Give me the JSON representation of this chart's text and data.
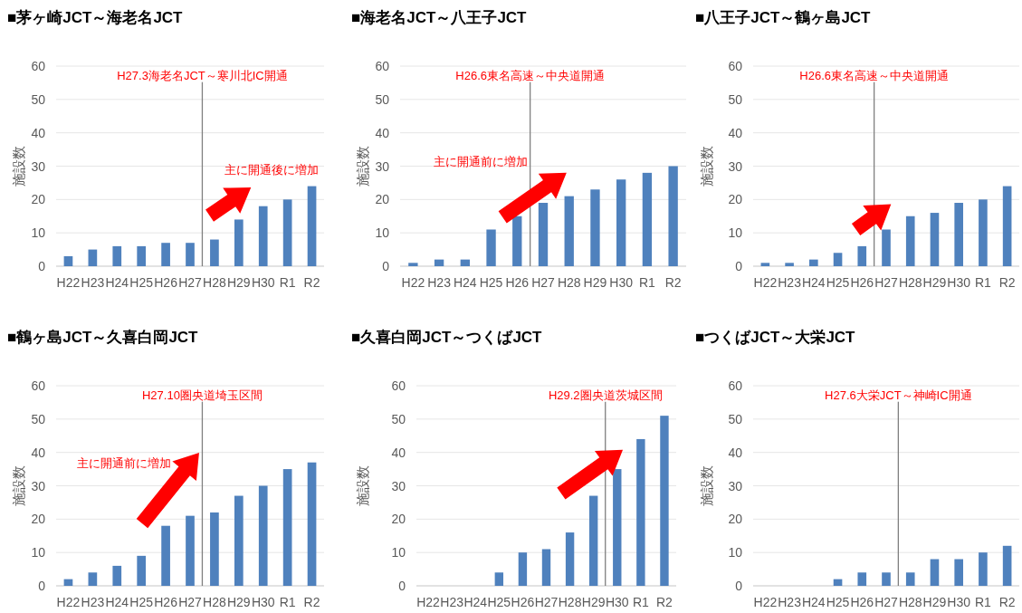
{
  "chart_data": [
    {
      "type": "bar",
      "title": "■茅ヶ崎JCT～海老名JCT",
      "ylabel": "施設数",
      "categories": [
        "H22",
        "H23",
        "H24",
        "H25",
        "H26",
        "H27",
        "H28",
        "H29",
        "H30",
        "R1",
        "R2"
      ],
      "values": [
        3,
        5,
        6,
        6,
        7,
        7,
        8,
        14,
        18,
        20,
        24
      ],
      "color": "#4f81bd",
      "ylim": [
        0,
        60
      ],
      "yticks": [
        0,
        10,
        20,
        30,
        40,
        50,
        60
      ],
      "grid": "y",
      "ref_lines": [
        {
          "axis": "x",
          "value": "H27",
          "label": "H27.3海老名JCT～寒川北IC開通",
          "color": "#7f7f7f"
        }
      ],
      "annotations": [
        "主に開通後に増加"
      ]
    },
    {
      "type": "bar",
      "title": "■海老名JCT～八王子JCT",
      "ylabel": "施設数",
      "categories": [
        "H22",
        "H23",
        "H24",
        "H25",
        "H26",
        "H27",
        "H28",
        "H29",
        "H30",
        "R1",
        "R2"
      ],
      "values": [
        1,
        2,
        2,
        11,
        15,
        19,
        21,
        23,
        26,
        28,
        30
      ],
      "color": "#4f81bd",
      "ylim": [
        0,
        60
      ],
      "yticks": [
        0,
        10,
        20,
        30,
        40,
        50,
        60
      ],
      "grid": "y",
      "ref_lines": [
        {
          "axis": "x",
          "value": "H26",
          "label": "H26.6東名高速～中央道開通",
          "color": "#7f7f7f"
        }
      ],
      "annotations": [
        "主に開通前に増加"
      ]
    },
    {
      "type": "bar",
      "title": "■八王子JCT～鶴ヶ島JCT",
      "ylabel": "施設数",
      "categories": [
        "H22",
        "H23",
        "H24",
        "H25",
        "H26",
        "H27",
        "H28",
        "H29",
        "H30",
        "R1",
        "R2"
      ],
      "values": [
        1,
        1,
        2,
        4,
        6,
        11,
        15,
        16,
        19,
        20,
        24
      ],
      "color": "#4f81bd",
      "ylim": [
        0,
        60
      ],
      "yticks": [
        0,
        10,
        20,
        30,
        40,
        50,
        60
      ],
      "grid": "y",
      "ref_lines": [
        {
          "axis": "x",
          "value": "H26",
          "label": "H26.6東名高速～中央道開通",
          "color": "#7f7f7f"
        }
      ]
    },
    {
      "type": "bar",
      "title": "■鶴ヶ島JCT～久喜白岡JCT",
      "ylabel": "施設数",
      "categories": [
        "H22",
        "H23",
        "H24",
        "H25",
        "H26",
        "H27",
        "H28",
        "H29",
        "H30",
        "R1",
        "R2"
      ],
      "values": [
        2,
        4,
        6,
        9,
        18,
        21,
        22,
        27,
        30,
        35,
        37
      ],
      "color": "#4f81bd",
      "ylim": [
        0,
        60
      ],
      "yticks": [
        0,
        10,
        20,
        30,
        40,
        50,
        60
      ],
      "grid": "y",
      "ref_lines": [
        {
          "axis": "x",
          "value": "H27",
          "label": "H27.10圏央道埼玉区間",
          "color": "#7f7f7f"
        }
      ],
      "annotations": [
        "主に開通前に増加"
      ]
    },
    {
      "type": "bar",
      "title": "■久喜白岡JCT～つくばJCT",
      "ylabel": "施設数",
      "categories": [
        "H22",
        "H23",
        "H24",
        "H25",
        "H26",
        "H27",
        "H28",
        "H29",
        "H30",
        "R1",
        "R2"
      ],
      "values": [
        0,
        0,
        0,
        4,
        10,
        11,
        16,
        27,
        35,
        44,
        51
      ],
      "color": "#4f81bd",
      "ylim": [
        0,
        60
      ],
      "yticks": [
        0,
        10,
        20,
        30,
        40,
        50,
        60
      ],
      "grid": "y",
      "ref_lines": [
        {
          "axis": "x",
          "value": "H29",
          "label": "H29.2圏央道茨城区間",
          "color": "#7f7f7f"
        }
      ]
    },
    {
      "type": "bar",
      "title": "■つくばJCT～大栄JCT",
      "ylabel": "施設数",
      "categories": [
        "H22",
        "H23",
        "H24",
        "H25",
        "H26",
        "H27",
        "H28",
        "H29",
        "H30",
        "R1",
        "R2"
      ],
      "values": [
        0,
        0,
        0,
        2,
        4,
        4,
        4,
        8,
        8,
        10,
        12
      ],
      "color": "#4f81bd",
      "ylim": [
        0,
        60
      ],
      "yticks": [
        0,
        10,
        20,
        30,
        40,
        50,
        60
      ],
      "grid": "y",
      "ref_lines": [
        {
          "axis": "x",
          "value": "H27",
          "label": "H27.6大栄JCT～神崎IC開通",
          "color": "#7f7f7f"
        }
      ]
    }
  ]
}
